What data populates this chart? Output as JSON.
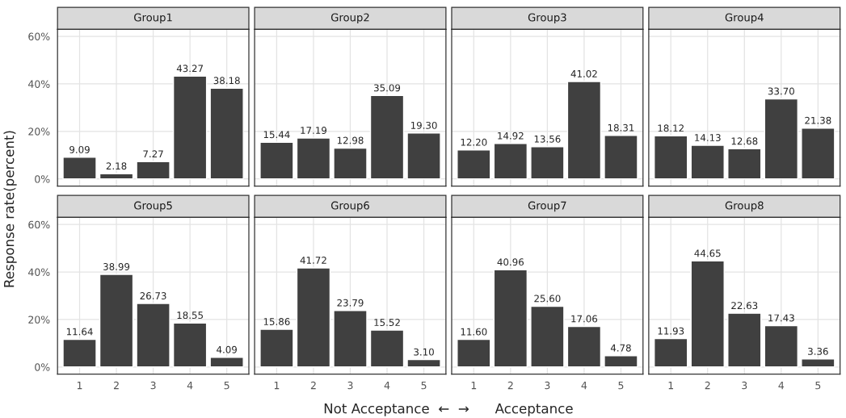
{
  "chart_data": [
    {
      "type": "bar",
      "title": "Group1",
      "categories": [
        "1",
        "2",
        "3",
        "4",
        "5"
      ],
      "values": [
        9.09,
        2.18,
        7.27,
        43.27,
        38.18
      ],
      "value_labels": [
        "9.09",
        "2.18",
        "7.27",
        "43.27",
        "38.18"
      ],
      "color": "#404040",
      "ylim": [
        -3,
        63
      ],
      "yticks": [
        {
          "value": 0,
          "label": "0%"
        },
        {
          "value": 20,
          "label": "20%"
        },
        {
          "value": 40,
          "label": "40%"
        },
        {
          "value": 60,
          "label": "60%"
        }
      ],
      "grid": true,
      "tick_labels": "y",
      "ylabel": "Response rate(percent)",
      "xlabel": "Not Acceptance  ←  →      Acceptance"
    },
    {
      "type": "bar",
      "title": "Group2",
      "categories": [
        "1",
        "2",
        "3",
        "4",
        "5"
      ],
      "values": [
        15.44,
        17.19,
        12.98,
        35.09,
        19.3
      ],
      "value_labels": [
        "15.44",
        "17.19",
        "12.98",
        "35.09",
        "19.30"
      ],
      "color": "#404040",
      "ylim": [
        -3,
        63
      ],
      "yticks": [
        {
          "value": 0,
          "label": null
        },
        {
          "value": 20,
          "label": null
        },
        {
          "value": 40,
          "label": null
        },
        {
          "value": 60,
          "label": null
        }
      ],
      "grid": true,
      "tick_labels": false
    },
    {
      "type": "bar",
      "title": "Group3",
      "categories": [
        "1",
        "2",
        "3",
        "4",
        "5"
      ],
      "values": [
        12.2,
        14.92,
        13.56,
        41.02,
        18.31
      ],
      "value_labels": [
        "12.20",
        "14.92",
        "13.56",
        "41.02",
        "18.31"
      ],
      "color": "#404040",
      "ylim": [
        -3,
        63
      ],
      "yticks": [
        {
          "value": 0,
          "label": null
        },
        {
          "value": 20,
          "label": null
        },
        {
          "value": 40,
          "label": null
        },
        {
          "value": 60,
          "label": null
        }
      ],
      "grid": true,
      "tick_labels": false
    },
    {
      "type": "bar",
      "title": "Group4",
      "categories": [
        "1",
        "2",
        "3",
        "4",
        "5"
      ],
      "values": [
        18.12,
        14.13,
        12.68,
        33.7,
        21.38
      ],
      "value_labels": [
        "18.12",
        "14.13",
        "12.68",
        "33.70",
        "21.38"
      ],
      "color": "#404040",
      "ylim": [
        -3,
        63
      ],
      "yticks": [
        {
          "value": 0,
          "label": null
        },
        {
          "value": 20,
          "label": null
        },
        {
          "value": 40,
          "label": null
        },
        {
          "value": 60,
          "label": null
        }
      ],
      "grid": true,
      "tick_labels": false
    },
    {
      "type": "bar",
      "title": "Group5",
      "categories": [
        "1",
        "2",
        "3",
        "4",
        "5"
      ],
      "values": [
        11.64,
        38.99,
        26.73,
        18.55,
        4.09
      ],
      "value_labels": [
        "11.64",
        "38.99",
        "26.73",
        "18.55",
        "4.09"
      ],
      "color": "#404040",
      "ylim": [
        -3,
        63
      ],
      "yticks": [
        {
          "value": 0,
          "label": "0%"
        },
        {
          "value": 20,
          "label": "20%"
        },
        {
          "value": 40,
          "label": "40%"
        },
        {
          "value": 60,
          "label": "60%"
        }
      ],
      "grid": true
    },
    {
      "type": "bar",
      "title": "Group6",
      "categories": [
        "1",
        "2",
        "3",
        "4",
        "5"
      ],
      "values": [
        15.86,
        41.72,
        23.79,
        15.52,
        3.1
      ],
      "value_labels": [
        "15.86",
        "41.72",
        "23.79",
        "15.52",
        "3.10"
      ],
      "color": "#404040",
      "ylim": [
        -3,
        63
      ],
      "yticks": [
        {
          "value": 0,
          "label": null
        },
        {
          "value": 20,
          "label": null
        },
        {
          "value": 40,
          "label": null
        },
        {
          "value": 60,
          "label": null
        }
      ],
      "grid": true,
      "tick_labels": "x"
    },
    {
      "type": "bar",
      "title": "Group7",
      "categories": [
        "1",
        "2",
        "3",
        "4",
        "5"
      ],
      "values": [
        11.6,
        40.96,
        25.6,
        17.06,
        4.78
      ],
      "value_labels": [
        "11.60",
        "40.96",
        "25.60",
        "17.06",
        "4.78"
      ],
      "color": "#404040",
      "ylim": [
        -3,
        63
      ],
      "yticks": [
        {
          "value": 0,
          "label": null
        },
        {
          "value": 20,
          "label": null
        },
        {
          "value": 40,
          "label": null
        },
        {
          "value": 60,
          "label": null
        }
      ],
      "grid": true,
      "tick_labels": "x"
    },
    {
      "type": "bar",
      "title": "Group8",
      "categories": [
        "1",
        "2",
        "3",
        "4",
        "5"
      ],
      "values": [
        11.93,
        44.65,
        22.63,
        17.43,
        3.36
      ],
      "value_labels": [
        "11.93",
        "44.65",
        "22.63",
        "17.43",
        "3.36"
      ],
      "color": "#404040",
      "ylim": [
        -3,
        63
      ],
      "yticks": [
        {
          "value": 0,
          "label": null
        },
        {
          "value": 20,
          "label": null
        },
        {
          "value": 40,
          "label": null
        },
        {
          "value": 60,
          "label": null
        }
      ],
      "grid": true,
      "tick_labels": "x"
    }
  ]
}
